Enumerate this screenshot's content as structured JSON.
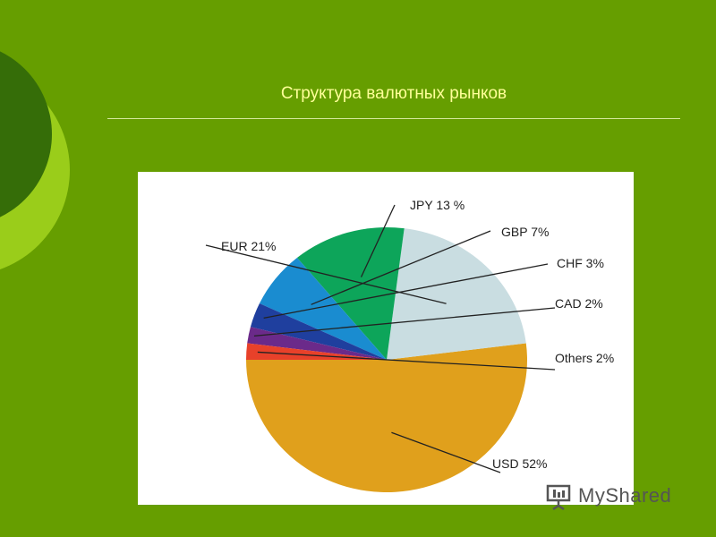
{
  "slide": {
    "title": "Структура валютных рынков",
    "background_color": "#669e00"
  },
  "chart_data": {
    "type": "pie",
    "title": "",
    "slices": [
      {
        "label": "USD 52%",
        "value": 52,
        "color": "#e0a01c"
      },
      {
        "label": "EUR 21%",
        "value": 21,
        "color": "#c9dde1"
      },
      {
        "label": "JPY 13 %",
        "value": 13,
        "color": "#0da55a"
      },
      {
        "label": "GBP 7%",
        "value": 7,
        "color": "#1a8cd0"
      },
      {
        "label": "CHF 3%",
        "value": 3,
        "color": "#1f3f9e"
      },
      {
        "label": "CAD 2%",
        "value": 2,
        "color": "#6b2a8a"
      },
      {
        "label": "Others 2%",
        "value": 2,
        "color": "#e8412a"
      }
    ],
    "legend": "none"
  },
  "watermark": {
    "text": "MyShared",
    "icon": "presentation-icon"
  }
}
